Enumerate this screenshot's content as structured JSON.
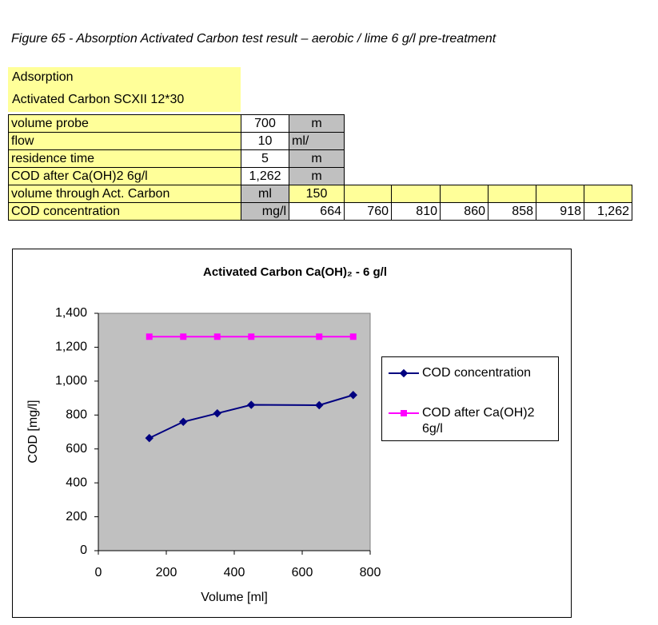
{
  "caption": "Figure 65 - Absorption Activated Carbon test result – aerobic / lime 6 g/l pre-treatment",
  "header": {
    "title": "Adsorption",
    "subtitle": "Activated Carbon SCXII 12*30"
  },
  "table": {
    "rows": [
      [
        "volume probe",
        "700",
        "m"
      ],
      [
        "flow",
        "10",
        "ml/"
      ],
      [
        "residence time",
        "5",
        "m"
      ],
      [
        "COD after Ca(OH)2 6g/l",
        "1,262",
        "m"
      ],
      [
        "volume through Act. Carbon",
        "ml",
        "150"
      ],
      [
        "COD concentration",
        "mg/l",
        "664",
        "760",
        "810",
        "860",
        "858",
        "918",
        "1,262"
      ]
    ]
  },
  "chart_data": {
    "type": "line",
    "title": "Activated Carbon Ca(OH)₂ - 6 g/l",
    "x_label": "Volume  [ml]",
    "y_label": "COD [mg/l]",
    "x": [
      150,
      250,
      350,
      450,
      650,
      750
    ],
    "series": [
      {
        "name": "COD concentration",
        "color": "#000080",
        "marker": "diamond",
        "values": [
          664,
          760,
          810,
          860,
          858,
          918
        ]
      },
      {
        "name": "COD after Ca(OH)2 6g/l",
        "color": "#ff00ff",
        "marker": "square",
        "values": [
          1262,
          1262,
          1262,
          1262,
          1262,
          1262
        ]
      }
    ],
    "xlim": [
      0,
      800
    ],
    "xticks": [
      0,
      200,
      400,
      600,
      800
    ],
    "ylim": [
      0,
      1400
    ],
    "yticks": [
      0,
      200,
      400,
      600,
      800,
      {
        "value": 1000,
        "label": "1,000"
      },
      {
        "value": 1200,
        "label": "1,200"
      },
      {
        "value": 1400,
        "label": "1,400"
      }
    ],
    "grid": false,
    "legend": "right",
    "plot_background": "#c0c0c0"
  }
}
